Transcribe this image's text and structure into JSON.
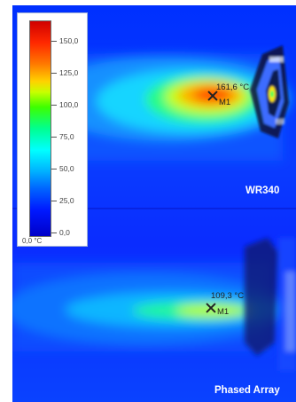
{
  "legend": {
    "ticks": [
      "150,0",
      "125,0",
      "100,0",
      "75,0",
      "50,0",
      "25,0",
      "0,0"
    ],
    "unit_label": "0,0 °C"
  },
  "panels": [
    {
      "caption": "WR340",
      "measurement": {
        "marker": "M1",
        "value": "161,6 °C"
      }
    },
    {
      "caption": "Phased Array",
      "measurement": {
        "marker": "M1",
        "value": "109,3 °C"
      }
    }
  ],
  "colors": {
    "background_cold": "#0a34ff",
    "hot_core": "#ff2000",
    "warm": "#ffd400",
    "mid": "#30ff30",
    "cool": "#00e8ff"
  }
}
